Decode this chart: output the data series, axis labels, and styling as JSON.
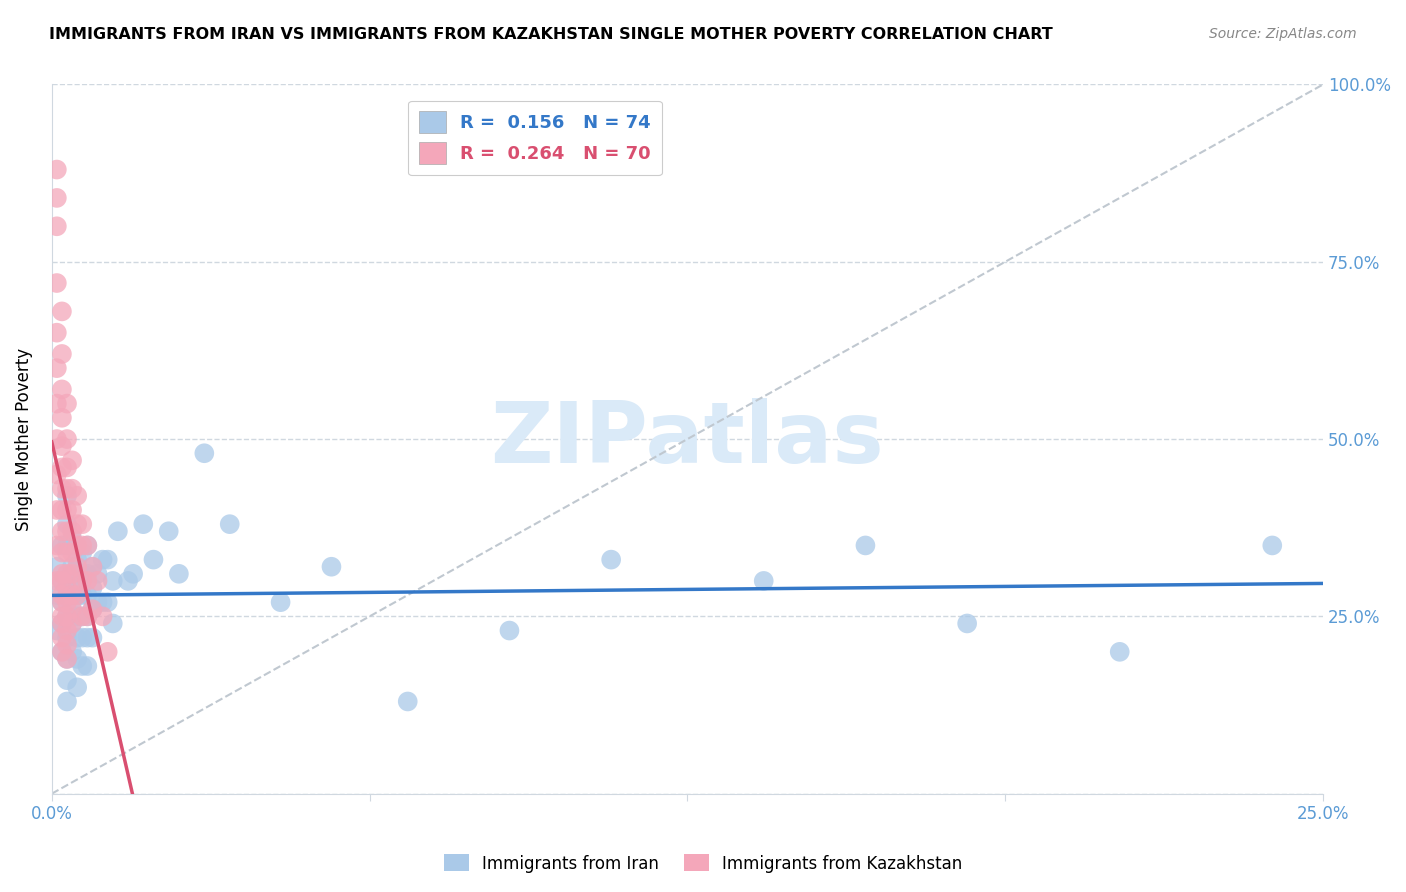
{
  "title": "IMMIGRANTS FROM IRAN VS IMMIGRANTS FROM KAZAKHSTAN SINGLE MOTHER POVERTY CORRELATION CHART",
  "source": "Source: ZipAtlas.com",
  "ylabel": "Single Mother Poverty",
  "yticks": [
    0.0,
    0.25,
    0.5,
    0.75,
    1.0
  ],
  "ytick_labels": [
    "",
    "25.0%",
    "50.0%",
    "75.0%",
    "100.0%"
  ],
  "xmin": 0.0,
  "xmax": 0.25,
  "ymin": 0.0,
  "ymax": 1.0,
  "legend_r_iran": "0.156",
  "legend_n_iran": "74",
  "legend_r_kaz": "0.264",
  "legend_n_kaz": "70",
  "blue_color": "#aac9e8",
  "pink_color": "#f4a7ba",
  "blue_line_color": "#3478c8",
  "pink_line_color": "#d94f70",
  "watermark_color": "#daeaf8",
  "axis_label_color": "#5b9bd5",
  "grid_color": "#d0d8e0",
  "iran_x": [
    0.001,
    0.001,
    0.001,
    0.002,
    0.002,
    0.002,
    0.002,
    0.002,
    0.003,
    0.003,
    0.003,
    0.003,
    0.003,
    0.003,
    0.003,
    0.003,
    0.003,
    0.003,
    0.004,
    0.004,
    0.004,
    0.004,
    0.004,
    0.004,
    0.005,
    0.005,
    0.005,
    0.005,
    0.005,
    0.005,
    0.005,
    0.006,
    0.006,
    0.006,
    0.006,
    0.006,
    0.006,
    0.007,
    0.007,
    0.007,
    0.007,
    0.007,
    0.007,
    0.008,
    0.008,
    0.008,
    0.008,
    0.009,
    0.009,
    0.01,
    0.01,
    0.011,
    0.011,
    0.012,
    0.012,
    0.013,
    0.015,
    0.016,
    0.018,
    0.02,
    0.023,
    0.025,
    0.03,
    0.035,
    0.045,
    0.055,
    0.07,
    0.09,
    0.11,
    0.14,
    0.16,
    0.18,
    0.21,
    0.24
  ],
  "iran_y": [
    0.32,
    0.28,
    0.23,
    0.35,
    0.3,
    0.27,
    0.24,
    0.2,
    0.42,
    0.38,
    0.35,
    0.3,
    0.28,
    0.25,
    0.22,
    0.19,
    0.16,
    0.13,
    0.36,
    0.32,
    0.3,
    0.27,
    0.24,
    0.2,
    0.33,
    0.3,
    0.28,
    0.25,
    0.22,
    0.19,
    0.15,
    0.34,
    0.31,
    0.28,
    0.25,
    0.22,
    0.18,
    0.35,
    0.31,
    0.28,
    0.25,
    0.22,
    0.18,
    0.32,
    0.29,
    0.26,
    0.22,
    0.31,
    0.27,
    0.33,
    0.27,
    0.33,
    0.27,
    0.3,
    0.24,
    0.37,
    0.3,
    0.31,
    0.38,
    0.33,
    0.37,
    0.31,
    0.48,
    0.38,
    0.27,
    0.32,
    0.13,
    0.23,
    0.33,
    0.3,
    0.35,
    0.24,
    0.2,
    0.35
  ],
  "kaz_x": [
    0.001,
    0.001,
    0.001,
    0.001,
    0.001,
    0.001,
    0.001,
    0.001,
    0.001,
    0.001,
    0.001,
    0.001,
    0.002,
    0.002,
    0.002,
    0.002,
    0.002,
    0.002,
    0.002,
    0.002,
    0.002,
    0.002,
    0.002,
    0.002,
    0.002,
    0.002,
    0.002,
    0.002,
    0.002,
    0.002,
    0.003,
    0.003,
    0.003,
    0.003,
    0.003,
    0.003,
    0.003,
    0.003,
    0.003,
    0.003,
    0.003,
    0.003,
    0.003,
    0.003,
    0.004,
    0.004,
    0.004,
    0.004,
    0.004,
    0.004,
    0.004,
    0.004,
    0.004,
    0.005,
    0.005,
    0.005,
    0.005,
    0.005,
    0.006,
    0.006,
    0.006,
    0.006,
    0.007,
    0.007,
    0.007,
    0.008,
    0.008,
    0.009,
    0.01,
    0.011
  ],
  "kaz_y": [
    0.88,
    0.84,
    0.8,
    0.72,
    0.65,
    0.6,
    0.55,
    0.5,
    0.45,
    0.4,
    0.35,
    0.3,
    0.68,
    0.62,
    0.57,
    0.53,
    0.49,
    0.46,
    0.43,
    0.4,
    0.37,
    0.34,
    0.31,
    0.3,
    0.28,
    0.27,
    0.25,
    0.24,
    0.22,
    0.2,
    0.55,
    0.5,
    0.46,
    0.43,
    0.4,
    0.37,
    0.34,
    0.31,
    0.29,
    0.27,
    0.25,
    0.23,
    0.21,
    0.19,
    0.47,
    0.43,
    0.4,
    0.37,
    0.34,
    0.31,
    0.28,
    0.26,
    0.24,
    0.42,
    0.38,
    0.35,
    0.32,
    0.28,
    0.38,
    0.35,
    0.3,
    0.25,
    0.35,
    0.3,
    0.25,
    0.32,
    0.26,
    0.3,
    0.25,
    0.2
  ]
}
